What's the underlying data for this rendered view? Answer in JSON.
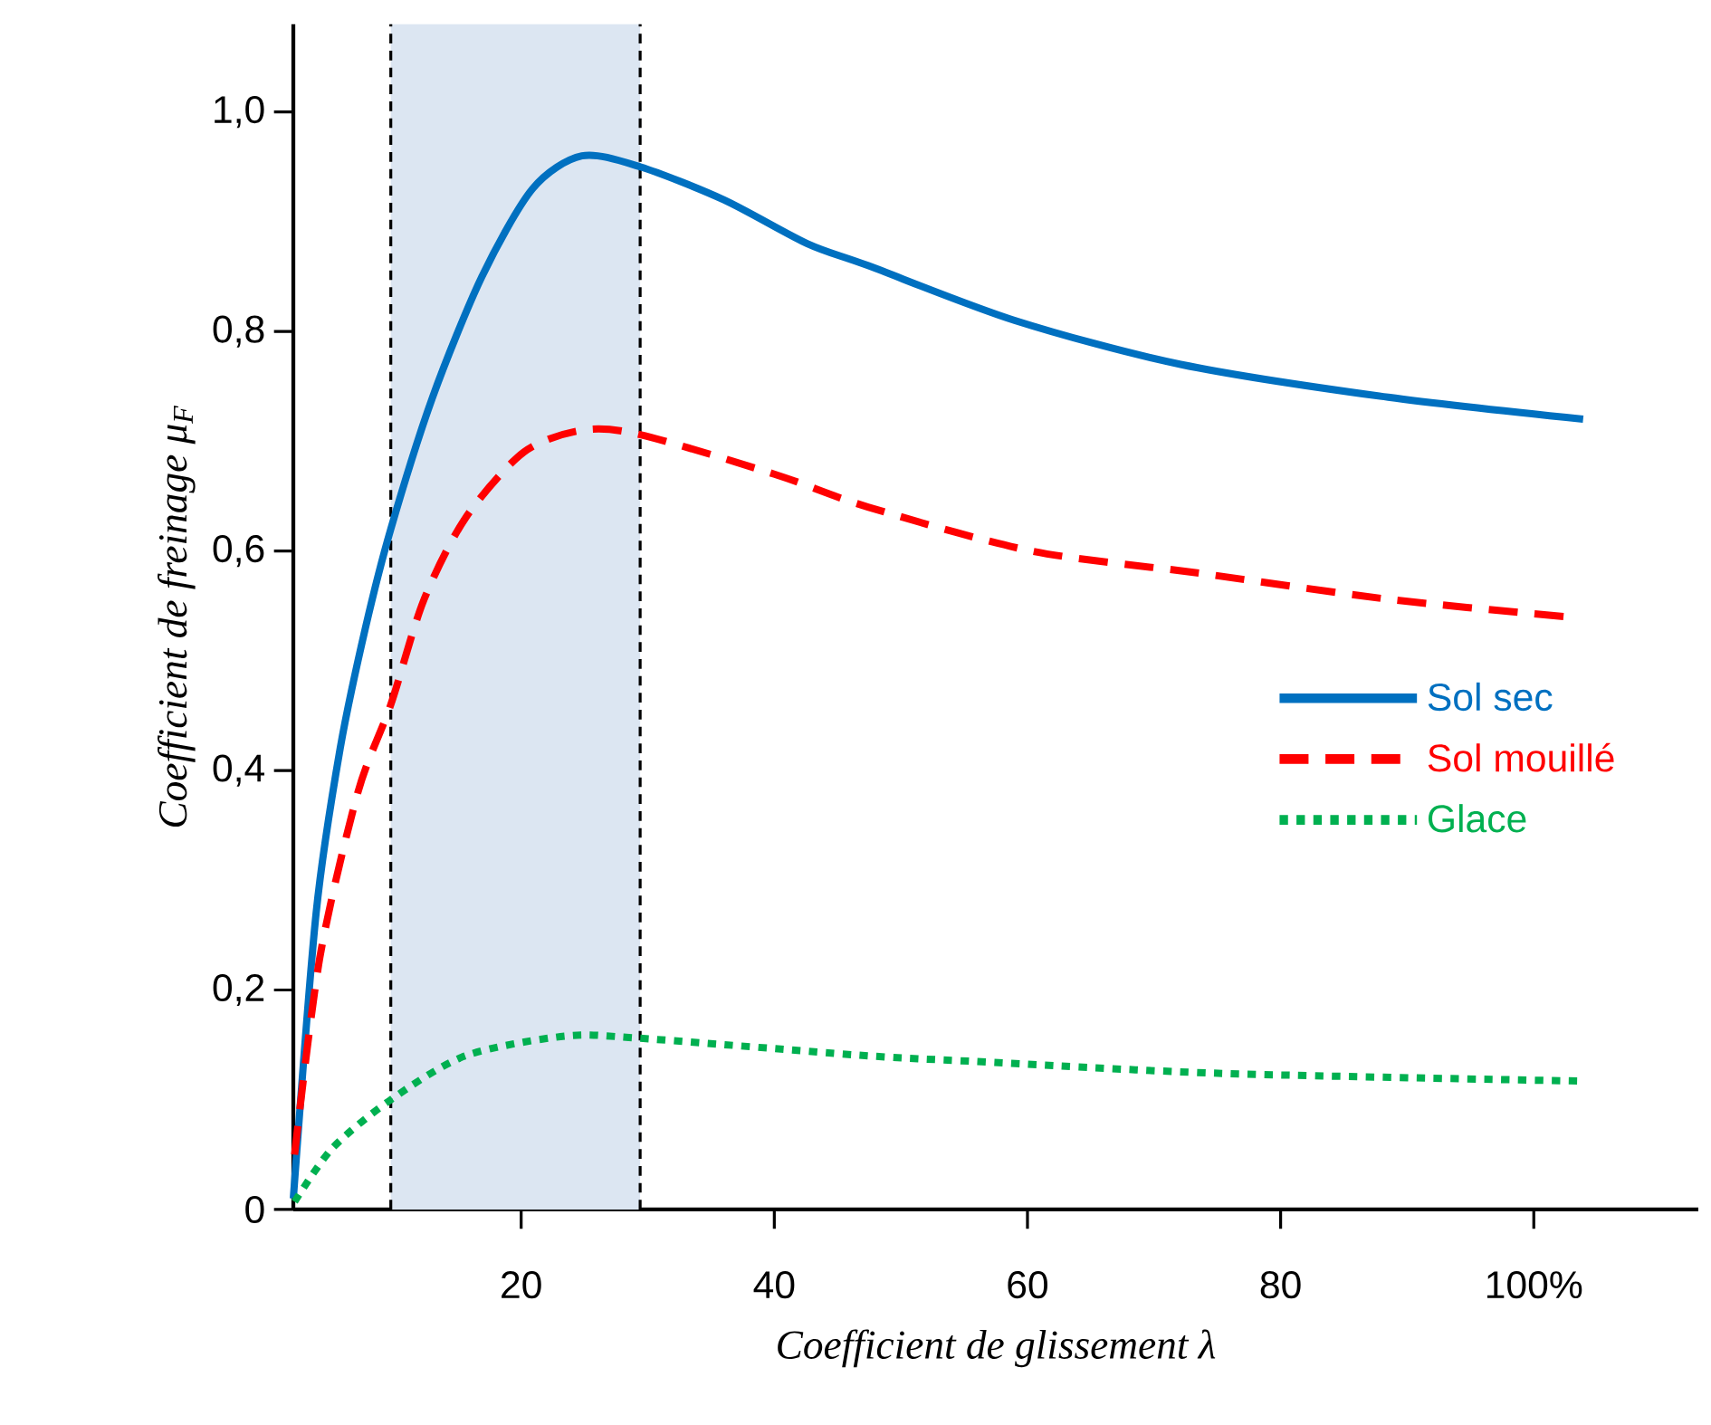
{
  "chart_data": {
    "type": "line",
    "xlabel": "Coefficient de glissement   λ",
    "ylabel": "Coefficient de freinage μ$_{F}$",
    "xlim": [
      2,
      113
    ],
    "ylim": [
      0,
      1.08
    ],
    "xticks": [
      20,
      40,
      60,
      80,
      {
        "value": 100,
        "label": "100%"
      }
    ],
    "yticks": [
      0,
      {
        "value": 0.2,
        "label": "0,2"
      },
      {
        "value": 0.4,
        "label": "0,4"
      },
      {
        "value": 0.6,
        "label": "0,6"
      },
      {
        "value": 0.8,
        "label": "0,8"
      },
      {
        "value": 1.0,
        "label": "1,0"
      }
    ],
    "grid": false,
    "legend": "right",
    "marker": "none",
    "series": [
      {
        "name": "Sol sec",
        "color": "#0070c0",
        "line_style": "solid",
        "x": [
          2,
          3.8,
          5.7,
          7.7,
          9.7,
          13,
          16.9,
          20.9,
          24.8,
          29.4,
          36,
          42.6,
          47.4,
          59,
          72.1,
          88.5,
          103.9
        ],
        "values": [
          0.01,
          0.27,
          0.42,
          0.53,
          0.62,
          0.74,
          0.85,
          0.93,
          0.96,
          0.95,
          0.92,
          0.88,
          0.86,
          0.81,
          0.77,
          0.74,
          0.72
        ]
      },
      {
        "name": "Sol mouillé",
        "color": "#ff0000",
        "line_style": "dashed",
        "x": [
          2.1,
          4.1,
          7.1,
          9.7,
          12.3,
          15.6,
          20.2,
          24.8,
          29.4,
          40,
          47.4,
          60.3,
          73.4,
          88.5,
          102.6
        ],
        "values": [
          0.05,
          0.23,
          0.38,
          0.46,
          0.555,
          0.63,
          0.69,
          0.71,
          0.706,
          0.67,
          0.64,
          0.6,
          0.58,
          0.556,
          0.54
        ]
      },
      {
        "name": "Glace",
        "color": "#00b050",
        "line_style": "dotted",
        "x": [
          2.1,
          5.1,
          9.7,
          15.6,
          23.5,
          29.4,
          47.4,
          55.7,
          75.4,
          103.9
        ],
        "values": [
          0.007,
          0.056,
          0.1,
          0.14,
          0.158,
          0.156,
          0.14,
          0.135,
          0.124,
          0.117
        ]
      }
    ],
    "ref_lines": [
      {
        "axis": "x",
        "value": 9.7,
        "color": "#000000",
        "line_style": "dashed"
      },
      {
        "axis": "x",
        "value": 29.4,
        "color": "#000000",
        "line_style": "dashed"
      }
    ],
    "bands": [
      {
        "axis": "x",
        "from": 9.7,
        "to": 29.4,
        "color": "#dce6f2"
      }
    ]
  }
}
